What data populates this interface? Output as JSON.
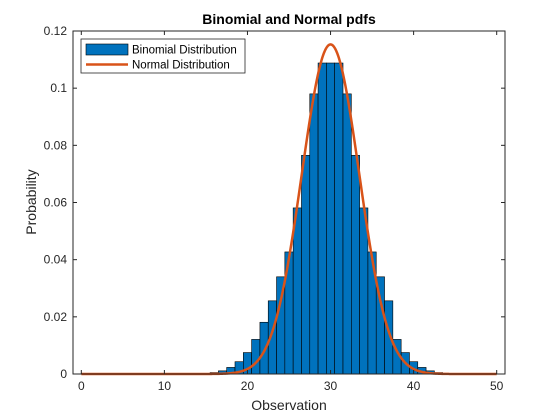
{
  "chart_data": {
    "type": "bar",
    "title": "Binomial and Normal pdfs",
    "xlabel": "Observation",
    "ylabel": "Probability",
    "xlim": [
      -1,
      51
    ],
    "ylim": [
      0,
      0.12
    ],
    "xticks": [
      0,
      10,
      20,
      30,
      40,
      50
    ],
    "yticks": [
      0,
      0.02,
      0.04,
      0.06,
      0.08,
      0.1,
      0.12
    ],
    "ytick_labels": [
      "0",
      "0.02",
      "0.04",
      "0.06",
      "0.08",
      "0.1",
      "0.12"
    ],
    "grid": false,
    "legend_position": "top-left",
    "series": [
      {
        "name": "Binomial Distribution",
        "kind": "bar",
        "color": "#0072BD",
        "edge_color": "#000000",
        "x": [
          0,
          1,
          2,
          3,
          4,
          5,
          6,
          7,
          8,
          9,
          10,
          11,
          12,
          13,
          14,
          15,
          16,
          17,
          18,
          19,
          20,
          21,
          22,
          23,
          24,
          25,
          26,
          27,
          28,
          29,
          30,
          31,
          32,
          33,
          34,
          35,
          36,
          37,
          38,
          39,
          40,
          41,
          42,
          43,
          44,
          45,
          46,
          47,
          48,
          49,
          50
        ],
        "values": [
          0,
          0,
          0,
          0,
          0,
          0,
          0,
          0,
          0,
          0,
          0,
          0,
          0,
          0,
          0.0001,
          0.0002,
          0.0005,
          0.0011,
          0.0023,
          0.0043,
          0.0075,
          0.0121,
          0.0181,
          0.0256,
          0.034,
          0.0427,
          0.0581,
          0.0765,
          0.098,
          0.1088,
          0.1088,
          0.1088,
          0.098,
          0.0765,
          0.0581,
          0.0427,
          0.034,
          0.0256,
          0.0121,
          0.0075,
          0.0043,
          0.0023,
          0.0011,
          0.0005,
          0.0002,
          0.0001,
          0,
          0,
          0,
          0,
          0
        ]
      },
      {
        "name": "Normal Distribution",
        "kind": "line",
        "color": "#D95319",
        "mean": 30,
        "sd": 3.46
      }
    ]
  }
}
